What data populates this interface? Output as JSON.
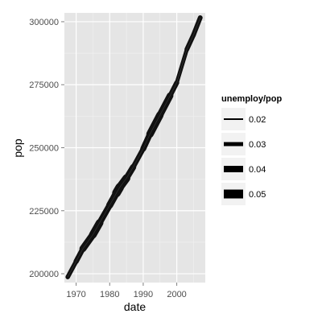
{
  "chart_data": {
    "type": "line",
    "xlabel": "date",
    "ylabel": "pop",
    "xlim": [
      1966.5,
      2008.5
    ],
    "ylim": [
      196500,
      303500
    ],
    "x_ticks": [
      {
        "value": 1970,
        "label": "1970"
      },
      {
        "value": 1980,
        "label": "1980"
      },
      {
        "value": 1990,
        "label": "1990"
      },
      {
        "value": 2000,
        "label": "2000"
      }
    ],
    "y_ticks": [
      {
        "value": 200000,
        "label": "200000"
      },
      {
        "value": 225000,
        "label": "225000"
      },
      {
        "value": 250000,
        "label": "250000"
      },
      {
        "value": 275000,
        "label": "275000"
      },
      {
        "value": 300000,
        "label": "300000"
      }
    ],
    "grid": true,
    "legend": {
      "title": "unemploy/pop",
      "placement": "right",
      "items": [
        {
          "label": "0.02",
          "value": 0.02
        },
        {
          "label": "0.03",
          "value": 0.03
        },
        {
          "label": "0.04",
          "value": 0.04
        },
        {
          "label": "0.05",
          "value": 0.05
        }
      ]
    },
    "series": [
      {
        "x": [
          1967.5,
          1970,
          1972,
          1975,
          1977,
          1980,
          1982,
          1983,
          1985,
          1987,
          1990,
          1992,
          1995,
          1998,
          2000,
          2003,
          2005,
          2007
        ],
        "y": [
          198700,
          204900,
          209900,
          215500,
          220200,
          227200,
          232000,
          234300,
          237900,
          242300,
          249600,
          255400,
          263000,
          270600,
          275800,
          289000,
          294800,
          301600
        ],
        "size": [
          0.03,
          0.034,
          0.036,
          0.048,
          0.042,
          0.036,
          0.048,
          0.05,
          0.042,
          0.036,
          0.032,
          0.044,
          0.044,
          0.038,
          0.03,
          0.03,
          0.036,
          0.03
        ]
      }
    ]
  }
}
